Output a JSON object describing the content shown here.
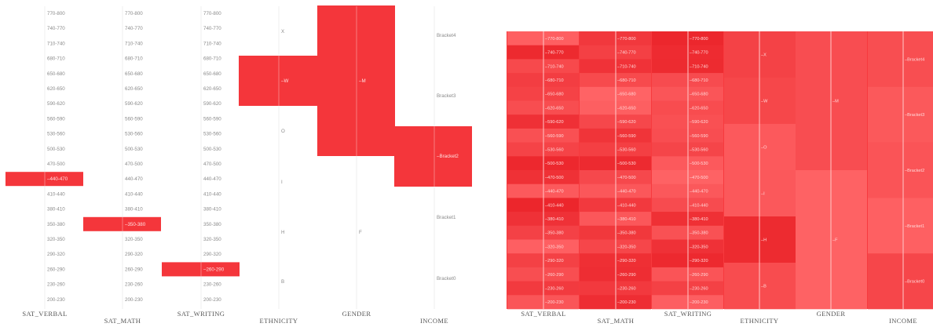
{
  "chart_data": [
    {
      "type": "parallel-sets",
      "dimensions": [
        {
          "name": "SAT_VERBAL",
          "categories": [
            "770-800",
            "740-770",
            "710-740",
            "680-710",
            "650-680",
            "620-650",
            "590-620",
            "560-590",
            "530-560",
            "500-530",
            "470-500",
            "440-470",
            "410-440",
            "380-410",
            "350-380",
            "320-350",
            "290-320",
            "260-290",
            "230-260",
            "200-230"
          ],
          "selected": [
            "440-470"
          ]
        },
        {
          "name": "SAT_MATH",
          "categories": [
            "770-800",
            "740-770",
            "710-740",
            "680-710",
            "650-680",
            "620-650",
            "590-620",
            "560-590",
            "530-560",
            "500-530",
            "470-500",
            "440-470",
            "410-440",
            "380-410",
            "350-380",
            "320-350",
            "290-320",
            "260-290",
            "230-260",
            "200-230"
          ],
          "selected": [
            "350-380"
          ]
        },
        {
          "name": "SAT_WRITING",
          "categories": [
            "770-800",
            "740-770",
            "710-740",
            "680-710",
            "650-680",
            "620-650",
            "590-620",
            "560-590",
            "530-560",
            "500-530",
            "470-500",
            "440-470",
            "410-440",
            "380-410",
            "350-380",
            "320-350",
            "290-320",
            "260-290",
            "230-260",
            "200-230"
          ],
          "selected": [
            "260-290"
          ]
        },
        {
          "name": "ETHNICITY",
          "categories": [
            "X",
            "W",
            "O",
            "I",
            "H",
            "B"
          ],
          "selected": [
            "W"
          ]
        },
        {
          "name": "GENDER",
          "categories": [
            "M",
            "F"
          ],
          "selected": [
            "M"
          ]
        },
        {
          "name": "INCOME",
          "categories": [
            "Bracket4",
            "Bracket3",
            "Bracket2",
            "Bracket1",
            "Bracket0"
          ],
          "selected": [
            "Bracket2"
          ]
        }
      ],
      "colors": {
        "highlight": "#f4363b",
        "axis": "#e6e6e6",
        "text": "#8a8a8a"
      }
    },
    {
      "type": "heatmap",
      "dimensions": [
        {
          "name": "SAT_VERBAL",
          "categories": [
            "770-800",
            "740-770",
            "710-740",
            "680-710",
            "650-680",
            "620-650",
            "590-620",
            "560-590",
            "530-560",
            "500-530",
            "470-500",
            "440-470",
            "410-440",
            "380-410",
            "350-380",
            "320-350",
            "290-320",
            "260-290",
            "230-260",
            "200-230"
          ]
        },
        {
          "name": "SAT_MATH",
          "categories": [
            "770-800",
            "740-770",
            "710-740",
            "680-710",
            "650-680",
            "620-650",
            "590-620",
            "560-590",
            "530-560",
            "500-530",
            "470-500",
            "440-470",
            "410-440",
            "380-410",
            "350-380",
            "320-350",
            "290-320",
            "260-290",
            "230-260",
            "200-230"
          ]
        },
        {
          "name": "SAT_WRITING",
          "categories": [
            "770-800",
            "740-770",
            "710-740",
            "680-710",
            "650-680",
            "620-650",
            "590-620",
            "560-590",
            "530-560",
            "500-530",
            "470-500",
            "440-470",
            "410-440",
            "380-410",
            "350-380",
            "320-350",
            "290-320",
            "260-290",
            "230-260",
            "200-230"
          ]
        },
        {
          "name": "ETHNICITY",
          "categories": [
            "X",
            "W",
            "O",
            "I",
            "H",
            "B"
          ]
        },
        {
          "name": "GENDER",
          "categories": [
            "M",
            "F"
          ]
        },
        {
          "name": "INCOME",
          "categories": [
            "Bracket4",
            "Bracket3",
            "Bracket2",
            "Bracket1",
            "Bracket0"
          ]
        }
      ],
      "colors": {
        "base": "#f73a3e",
        "light": "#ff6e70",
        "dark": "#ec2a30"
      }
    }
  ]
}
